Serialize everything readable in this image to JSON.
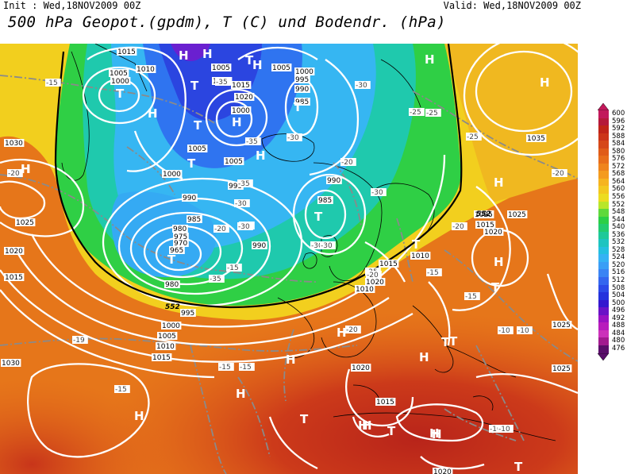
{
  "header": {
    "init": "Init : Wed,18NOV2009 00Z",
    "valid": "Valid: Wed,18NOV2009 00Z",
    "title": "500 hPa Geopot.(gpdm), T (C) und Bodendr. (hPa)"
  },
  "colors": {
    "background_ocean": "#e8801a",
    "warm_south": "#c83a1c",
    "yellow": "#f2d21e",
    "green": "#2fcf45",
    "teal": "#1fc8b0",
    "cyan": "#36b9f2",
    "blue": "#2f6ff2",
    "purple": "#6a2ad8",
    "contour_white": "#ffffff",
    "isotherm_gray": "#808080",
    "coast": "#000000"
  },
  "colorbar": {
    "values": [
      "600",
      "596",
      "592",
      "588",
      "584",
      "580",
      "576",
      "572",
      "568",
      "564",
      "560",
      "556",
      "552",
      "548",
      "544",
      "540",
      "536",
      "532",
      "528",
      "524",
      "520",
      "516",
      "512",
      "508",
      "504",
      "500",
      "496",
      "492",
      "488",
      "484",
      "480",
      "476"
    ],
    "colors": [
      "#c2185b",
      "#b5193a",
      "#c02418",
      "#cc3418",
      "#d64818",
      "#e05c18",
      "#e86e1a",
      "#ef841c",
      "#f49b1e",
      "#f6b41f",
      "#f3c81f",
      "#ecdc20",
      "#b8e62a",
      "#5fd93b",
      "#2bcf46",
      "#22cc6e",
      "#1ec999",
      "#1dc4c0",
      "#24bfe0",
      "#35b2f4",
      "#3a9ef6",
      "#3a84f4",
      "#3466ef",
      "#2c4ae8",
      "#2432dd",
      "#3417cf",
      "#6a12c7",
      "#9a12c2",
      "#b81cbc",
      "#cc31ba",
      "#a21a8f",
      "#5a0e6a"
    ]
  },
  "map": {
    "pressure_labels": [
      "1015",
      "1010",
      "1005",
      "1000",
      "1005",
      "1010",
      "1015",
      "1020",
      "1005",
      "1000",
      "995",
      "990",
      "985",
      "1000",
      "1005",
      "1005",
      "1000",
      "995",
      "990",
      "985",
      "980",
      "975",
      "970",
      "965",
      "980",
      "1030",
      "1025",
      "1020",
      "1015",
      "985",
      "990",
      "990",
      "995",
      "1000",
      "1005",
      "1010",
      "1015",
      "1020",
      "1025",
      "1030",
      "1035",
      "1020",
      "1015",
      "1010",
      "1015",
      "1020",
      "1025",
      "1025",
      "1010",
      "1015",
      "1020",
      "1025"
    ],
    "temp_labels": [
      "-15",
      "-35",
      "-35",
      "-30",
      "-30",
      "-35",
      "-20",
      "-30",
      "-30",
      "-25",
      "-25",
      "-25",
      "-20",
      "-20",
      "-30",
      "-20",
      "-20",
      "-30",
      "-15",
      "-25",
      "-15",
      "-35",
      "-30",
      "-20",
      "-15",
      "-20",
      "-15",
      "-10",
      "-10",
      "-10",
      "-10",
      "-15",
      "-15",
      "-20",
      "-19"
    ],
    "centers": [
      "H",
      "T",
      "H",
      "T",
      "H",
      "T",
      "T",
      "H",
      "H",
      "T",
      "T",
      "H",
      "H",
      "H",
      "H",
      "T",
      "T",
      "T",
      "H",
      "H",
      "H",
      "H",
      "T",
      "T",
      "H",
      "H",
      "H",
      "T",
      "H",
      "H",
      "T",
      "T",
      "H",
      "H",
      "T",
      "H"
    ],
    "line_labels": [
      "552",
      "552"
    ]
  }
}
